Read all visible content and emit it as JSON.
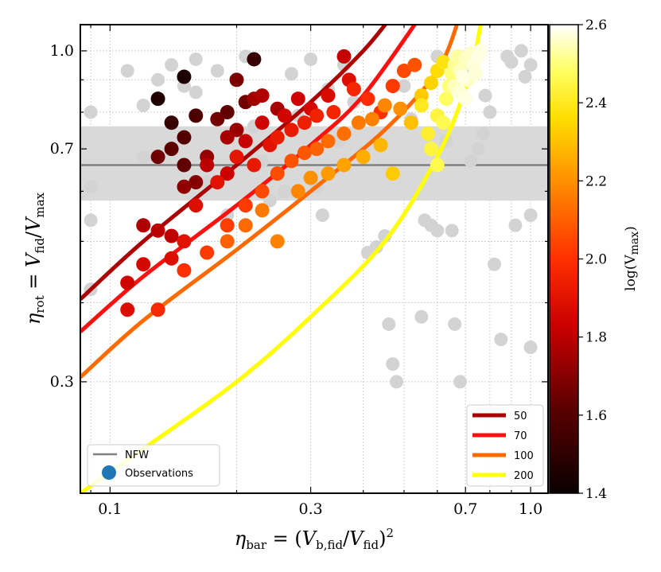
{
  "chart_data": {
    "type": "scatter",
    "xscale": "log",
    "yscale": "log",
    "xlim": [
      0.085,
      1.1
    ],
    "ylim": [
      0.2,
      1.1
    ],
    "xlabel": "η_bar = (V_b,fid / V_fid)²",
    "ylabel": "η_rot = V_fid / V_max",
    "xticks": [
      {
        "value": 0.1,
        "label": "0.1"
      },
      {
        "value": 0.3,
        "label": "0.3"
      },
      {
        "value": 0.7,
        "label": "0.7"
      },
      {
        "value": 1.0,
        "label": "1.0"
      }
    ],
    "yticks": [
      {
        "value": 0.3,
        "label": "0.3"
      },
      {
        "value": 0.7,
        "label": "0.7"
      },
      {
        "value": 1.0,
        "label": "1.0"
      }
    ],
    "nfw_band": {
      "center": 0.66,
      "low": 0.58,
      "high": 0.76
    },
    "colorbar": {
      "label": "log(V_max)",
      "min": 1.4,
      "max": 2.6,
      "ticks": [
        "1.4",
        "1.6",
        "1.8",
        "2.0",
        "2.2",
        "2.4",
        "2.6"
      ]
    },
    "curves": [
      {
        "name": "50",
        "logv": 1.62,
        "color": "#aa0000",
        "points": [
          [
            0.085,
            0.405
          ],
          [
            0.12,
            0.5
          ],
          [
            0.2,
            0.66
          ],
          [
            0.3,
            0.83
          ],
          [
            0.4,
            1.0
          ],
          [
            0.47,
            1.14
          ]
        ]
      },
      {
        "name": "70",
        "logv": 1.79,
        "color": "#ff1010",
        "points": [
          [
            0.085,
            0.36
          ],
          [
            0.12,
            0.44
          ],
          [
            0.2,
            0.57
          ],
          [
            0.3,
            0.71
          ],
          [
            0.4,
            0.85
          ],
          [
            0.55,
            1.14
          ]
        ]
      },
      {
        "name": "100",
        "logv": 2.05,
        "color": "#ff6a00",
        "points": [
          [
            0.085,
            0.305
          ],
          [
            0.12,
            0.375
          ],
          [
            0.2,
            0.485
          ],
          [
            0.3,
            0.6
          ],
          [
            0.45,
            0.75
          ],
          [
            0.6,
            0.93
          ],
          [
            0.68,
            1.14
          ]
        ]
      },
      {
        "name": "200",
        "logv": 2.3,
        "color": "#ffff00",
        "points": [
          [
            0.085,
            0.2
          ],
          [
            0.12,
            0.235
          ],
          [
            0.2,
            0.3
          ],
          [
            0.3,
            0.38
          ],
          [
            0.45,
            0.5
          ],
          [
            0.6,
            0.68
          ],
          [
            0.7,
            0.87
          ],
          [
            0.74,
            1.0
          ],
          [
            0.76,
            1.1
          ]
        ]
      }
    ],
    "series": [
      {
        "name": "Observations (no color)",
        "color": "#d3d3d3",
        "points": [
          [
            0.09,
            0.8
          ],
          [
            0.09,
            0.61
          ],
          [
            0.09,
            0.54
          ],
          [
            0.09,
            0.42
          ],
          [
            0.11,
            0.93
          ],
          [
            0.12,
            0.82
          ],
          [
            0.12,
            0.68
          ],
          [
            0.13,
            0.9
          ],
          [
            0.14,
            0.95
          ],
          [
            0.15,
            0.88
          ],
          [
            0.16,
            0.97
          ],
          [
            0.16,
            0.86
          ],
          [
            0.17,
            0.62
          ],
          [
            0.18,
            0.93
          ],
          [
            0.19,
            0.55
          ],
          [
            0.2,
            0.9
          ],
          [
            0.21,
            0.98
          ],
          [
            0.22,
            0.76
          ],
          [
            0.23,
            0.67
          ],
          [
            0.24,
            0.58
          ],
          [
            0.25,
            0.73
          ],
          [
            0.26,
            0.6
          ],
          [
            0.27,
            0.92
          ],
          [
            0.28,
            0.79
          ],
          [
            0.3,
            0.97
          ],
          [
            0.31,
            0.61
          ],
          [
            0.32,
            0.55
          ],
          [
            0.33,
            0.87
          ],
          [
            0.35,
            0.72
          ],
          [
            0.36,
            0.95
          ],
          [
            0.38,
            0.83
          ],
          [
            0.4,
            0.69
          ],
          [
            0.41,
            0.48
          ],
          [
            0.43,
            0.49
          ],
          [
            0.45,
            0.51
          ],
          [
            0.46,
            0.37
          ],
          [
            0.47,
            0.32
          ],
          [
            0.48,
            0.3
          ],
          [
            0.5,
            0.88
          ],
          [
            0.52,
            0.78
          ],
          [
            0.55,
            0.38
          ],
          [
            0.56,
            0.54
          ],
          [
            0.58,
            0.53
          ],
          [
            0.6,
            0.98
          ],
          [
            0.6,
            0.52
          ],
          [
            0.63,
            0.72
          ],
          [
            0.65,
            0.52
          ],
          [
            0.66,
            0.37
          ],
          [
            0.68,
            0.3
          ],
          [
            0.7,
            0.93
          ],
          [
            0.72,
            0.67
          ],
          [
            0.75,
            0.7
          ],
          [
            0.77,
            0.74
          ],
          [
            0.78,
            0.85
          ],
          [
            0.8,
            0.8
          ],
          [
            0.82,
            0.46
          ],
          [
            0.85,
            0.35
          ],
          [
            0.88,
            0.98
          ],
          [
            0.9,
            0.96
          ],
          [
            0.92,
            0.53
          ],
          [
            0.95,
            1.0
          ],
          [
            0.97,
            0.91
          ],
          [
            1.0,
            0.34
          ],
          [
            1.0,
            0.95
          ],
          [
            1.0,
            0.55
          ]
        ]
      },
      {
        "name": "Observations (colored by log V_max)",
        "points": [
          [
            0.13,
            0.84,
            1.46
          ],
          [
            0.15,
            0.91,
            1.45
          ],
          [
            0.22,
            0.97,
            1.52
          ],
          [
            0.14,
            0.77,
            1.52
          ],
          [
            0.16,
            0.79,
            1.58
          ],
          [
            0.15,
            0.73,
            1.6
          ],
          [
            0.14,
            0.7,
            1.62
          ],
          [
            0.13,
            0.68,
            1.66
          ],
          [
            0.15,
            0.66,
            1.63
          ],
          [
            0.19,
            0.8,
            1.63
          ],
          [
            0.18,
            0.78,
            1.66
          ],
          [
            0.2,
            0.9,
            1.68
          ],
          [
            0.21,
            0.83,
            1.66
          ],
          [
            0.16,
            0.62,
            1.7
          ],
          [
            0.15,
            0.61,
            1.72
          ],
          [
            0.17,
            0.68,
            1.73
          ],
          [
            0.2,
            0.75,
            1.74
          ],
          [
            0.19,
            0.73,
            1.76
          ],
          [
            0.22,
            0.84,
            1.75
          ],
          [
            0.25,
            0.81,
            1.76
          ],
          [
            0.23,
            0.85,
            1.78
          ],
          [
            0.12,
            0.53,
            1.78
          ],
          [
            0.13,
            0.52,
            1.8
          ],
          [
            0.14,
            0.51,
            1.81
          ],
          [
            0.17,
            0.66,
            1.8
          ],
          [
            0.19,
            0.64,
            1.83
          ],
          [
            0.21,
            0.72,
            1.82
          ],
          [
            0.23,
            0.77,
            1.84
          ],
          [
            0.26,
            0.79,
            1.85
          ],
          [
            0.28,
            0.84,
            1.84
          ],
          [
            0.3,
            0.81,
            1.86
          ],
          [
            0.33,
            0.85,
            1.87
          ],
          [
            0.36,
            0.98,
            1.82
          ],
          [
            0.37,
            0.9,
            1.88
          ],
          [
            0.11,
            0.43,
            1.85
          ],
          [
            0.11,
            0.39,
            1.88
          ],
          [
            0.12,
            0.46,
            1.86
          ],
          [
            0.14,
            0.47,
            1.88
          ],
          [
            0.15,
            0.5,
            1.9
          ],
          [
            0.16,
            0.57,
            1.88
          ],
          [
            0.18,
            0.62,
            1.9
          ],
          [
            0.2,
            0.68,
            1.91
          ],
          [
            0.22,
            0.66,
            1.92
          ],
          [
            0.24,
            0.71,
            1.9
          ],
          [
            0.25,
            0.73,
            1.93
          ],
          [
            0.27,
            0.75,
            1.92
          ],
          [
            0.29,
            0.77,
            1.94
          ],
          [
            0.31,
            0.79,
            1.95
          ],
          [
            0.34,
            0.8,
            1.96
          ],
          [
            0.38,
            0.87,
            1.97
          ],
          [
            0.41,
            0.84,
            1.99
          ],
          [
            0.44,
            0.8,
            2.0
          ],
          [
            0.47,
            0.88,
            2.02
          ],
          [
            0.5,
            0.93,
            2.05
          ],
          [
            0.53,
            0.95,
            2.07
          ],
          [
            0.13,
            0.39,
            1.98
          ],
          [
            0.15,
            0.45,
            2.0
          ],
          [
            0.17,
            0.48,
            2.02
          ],
          [
            0.19,
            0.53,
            2.03
          ],
          [
            0.21,
            0.57,
            2.02
          ],
          [
            0.23,
            0.6,
            2.05
          ],
          [
            0.25,
            0.64,
            2.06
          ],
          [
            0.27,
            0.67,
            2.07
          ],
          [
            0.29,
            0.69,
            2.08
          ],
          [
            0.31,
            0.7,
            2.1
          ],
          [
            0.33,
            0.72,
            2.12
          ],
          [
            0.36,
            0.74,
            2.13
          ],
          [
            0.39,
            0.77,
            2.15
          ],
          [
            0.42,
            0.78,
            2.17
          ],
          [
            0.45,
            0.82,
            2.18
          ],
          [
            0.49,
            0.81,
            2.2
          ],
          [
            0.19,
            0.5,
            2.1
          ],
          [
            0.21,
            0.53,
            2.12
          ],
          [
            0.23,
            0.56,
            2.15
          ],
          [
            0.25,
            0.5,
            2.17
          ],
          [
            0.28,
            0.6,
            2.18
          ],
          [
            0.3,
            0.63,
            2.2
          ],
          [
            0.33,
            0.64,
            2.22
          ],
          [
            0.36,
            0.66,
            2.24
          ],
          [
            0.4,
            0.68,
            2.26
          ],
          [
            0.44,
            0.71,
            2.28
          ],
          [
            0.47,
            0.64,
            2.32
          ],
          [
            0.52,
            0.77,
            2.3
          ],
          [
            0.55,
            0.85,
            2.32
          ],
          [
            0.58,
            0.89,
            2.34
          ],
          [
            0.6,
            0.93,
            2.36
          ],
          [
            0.62,
            0.96,
            2.38
          ],
          [
            0.55,
            0.82,
            2.4
          ],
          [
            0.57,
            0.74,
            2.42
          ],
          [
            0.58,
            0.7,
            2.44
          ],
          [
            0.6,
            0.66,
            2.46
          ],
          [
            0.6,
            0.79,
            2.44
          ],
          [
            0.62,
            0.77,
            2.46
          ],
          [
            0.63,
            0.84,
            2.48
          ],
          [
            0.64,
            0.88,
            2.5
          ],
          [
            0.65,
            0.92,
            2.5
          ],
          [
            0.66,
            0.95,
            2.52
          ],
          [
            0.67,
            0.98,
            2.53
          ],
          [
            0.68,
            0.93,
            2.55
          ],
          [
            0.7,
            0.97,
            2.55
          ],
          [
            0.71,
            0.9,
            2.56
          ],
          [
            0.72,
            0.99,
            2.56
          ],
          [
            0.73,
            0.95,
            2.57
          ],
          [
            0.74,
            0.92,
            2.57
          ],
          [
            0.75,
            0.98,
            2.58
          ],
          [
            0.76,
            1.0,
            2.58
          ],
          [
            0.66,
            0.88,
            2.55
          ],
          [
            0.68,
            0.86,
            2.57
          ],
          [
            0.7,
            0.84,
            2.58
          ],
          [
            0.69,
            0.91,
            2.58
          ]
        ]
      }
    ],
    "legend": {
      "curves_title_values": [
        "50",
        "70",
        "100",
        "200"
      ],
      "markers": [
        {
          "label": "NFW",
          "color": "#808080"
        },
        {
          "label": "Observations",
          "color": "#1f77b4"
        }
      ]
    }
  }
}
